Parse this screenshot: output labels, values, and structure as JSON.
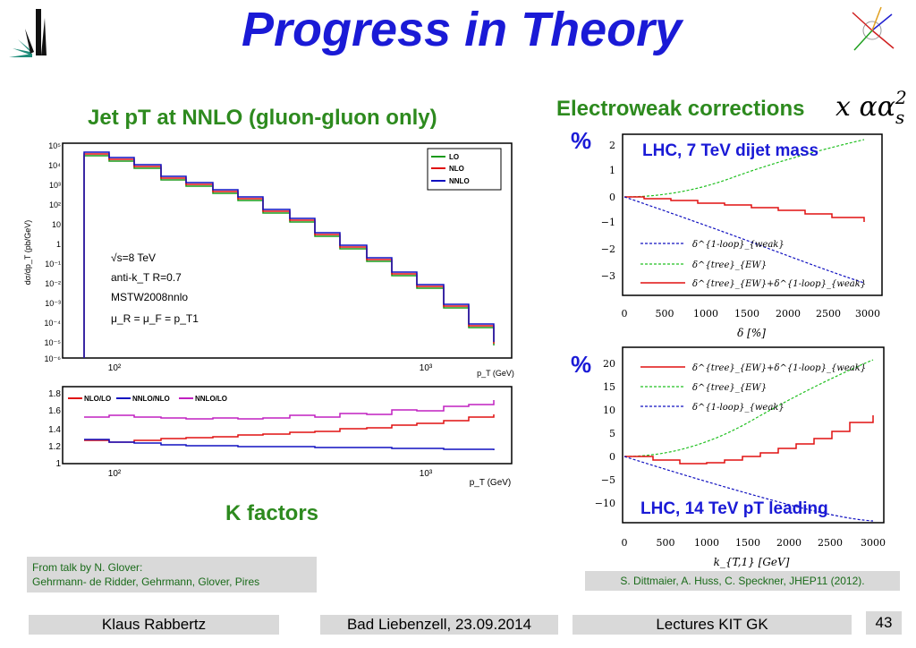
{
  "slide": {
    "title": "Progress in Theory",
    "page_number": "43"
  },
  "left": {
    "heading": "Jet pT at NNLO (gluon-gluon only)",
    "kfactors_label": "K factors",
    "top_plot": {
      "ylabel": "dσ/dp_T (pb/GeV)",
      "xlabel": "p_T (GeV)",
      "legend": [
        "LO",
        "NLO",
        "NNLO"
      ],
      "colors": {
        "LO": "#1a9a1a",
        "NLO": "#e01010",
        "NNLO": "#1010c0"
      },
      "annot": [
        "√s=8 TeV",
        "anti-k_T R=0.7",
        "MSTW2008nnlo",
        "μ_R = μ_F = p_T1"
      ],
      "ytick_labels": [
        "10⁵",
        "10⁴",
        "10³",
        "10²",
        "10",
        "1",
        "10⁻¹",
        "10⁻²",
        "10⁻³",
        "10⁻⁴",
        "10⁻⁵",
        "10⁻⁶"
      ],
      "xtick_labels": [
        "10²",
        "10³"
      ]
    },
    "bottom_plot": {
      "xlabel": "p_T (GeV)",
      "legend": [
        "NLO/LO",
        "NNLO/NLO",
        "NNLO/LO"
      ],
      "colors": {
        "NLO/LO": "#e01010",
        "NNLO/NLO": "#1010c0",
        "NNLO/LO": "#c020c0"
      },
      "ytick_labels": [
        "1.8",
        "1.6",
        "1.4",
        "1.2",
        "1"
      ],
      "xtick_labels": [
        "10²",
        "10³"
      ]
    },
    "credit_line1": "From talk by N. Glover:",
    "credit_line2": "Gehrmann- de Ridder, Gehrmann, Glover, Pires"
  },
  "right": {
    "heading": "Electroweak corrections",
    "factor": "x αα",
    "factor_sup": "2",
    "factor_sub": "s",
    "percent_top": "%",
    "percent_bottom": "%",
    "top_plot": {
      "title": "LHC, 7 TeV dijet mass",
      "xlabel": "δ [%]",
      "ytick_labels": [
        "2",
        "1",
        "0",
        "−1",
        "−2",
        "−3"
      ],
      "xtick_labels": [
        "0",
        "500",
        "1000",
        "1500",
        "2000",
        "2500",
        "3000"
      ],
      "legend": [
        "δ^{1-loop}_{weak}",
        "δ^{tree}_{EW}",
        "δ^{tree}_{EW}+δ^{1-loop}_{weak}"
      ]
    },
    "bottom_plot": {
      "title": "LHC, 14 TeV pT leading",
      "xlabel": "k_{T,1} [GeV]",
      "ytick_labels": [
        "20",
        "15",
        "10",
        "5",
        "0",
        "−5",
        "−10"
      ],
      "xtick_labels": [
        "0",
        "500",
        "1000",
        "1500",
        "2000",
        "2500",
        "3000"
      ],
      "legend": [
        "δ^{tree}_{EW}+δ^{1-loop}_{weak}",
        "δ^{tree}_{EW}",
        "δ^{1-loop}_{weak}"
      ]
    },
    "citation": "S. Dittmaier, A. Huss, C. Speckner, JHEP11 (2012)."
  },
  "footer": {
    "left": "Klaus Rabbertz",
    "center": "Bad Liebenzell, 23.09.2014",
    "right": "Lectures KIT GK"
  }
}
